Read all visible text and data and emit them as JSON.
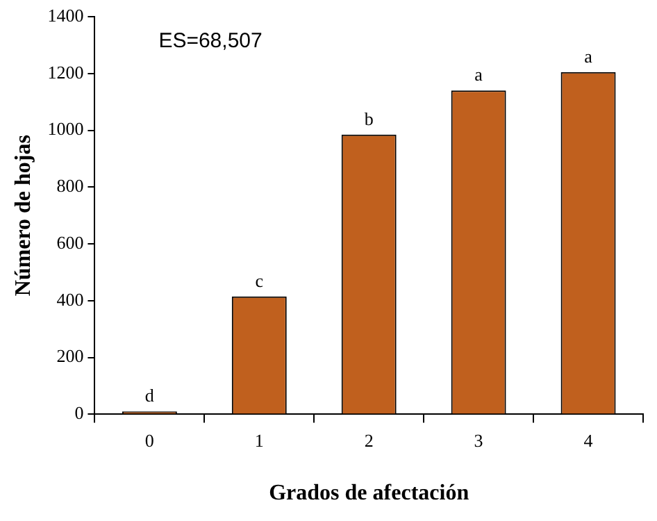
{
  "chart_data": {
    "type": "bar",
    "xlabel": "Grados de afectación",
    "ylabel": "Número de hojas",
    "categories": [
      "0",
      "1",
      "2",
      "3",
      "4"
    ],
    "values": [
      10,
      415,
      985,
      1140,
      1205
    ],
    "color": "#c0601e",
    "ylim": [
      0,
      1400
    ],
    "yticks": [
      0,
      200,
      400,
      600,
      800,
      1000,
      1200,
      1400
    ],
    "grid": false,
    "legend": false,
    "annotations": [
      "ES=68,507",
      {
        "text": "d",
        "x": "0",
        "y": 10
      },
      {
        "text": "c",
        "x": "1",
        "y": 415
      },
      {
        "text": "b",
        "x": "2",
        "y": 985
      },
      {
        "text": "a",
        "x": "3",
        "y": 1140
      },
      {
        "text": "a",
        "x": "4",
        "y": 1205
      }
    ]
  }
}
